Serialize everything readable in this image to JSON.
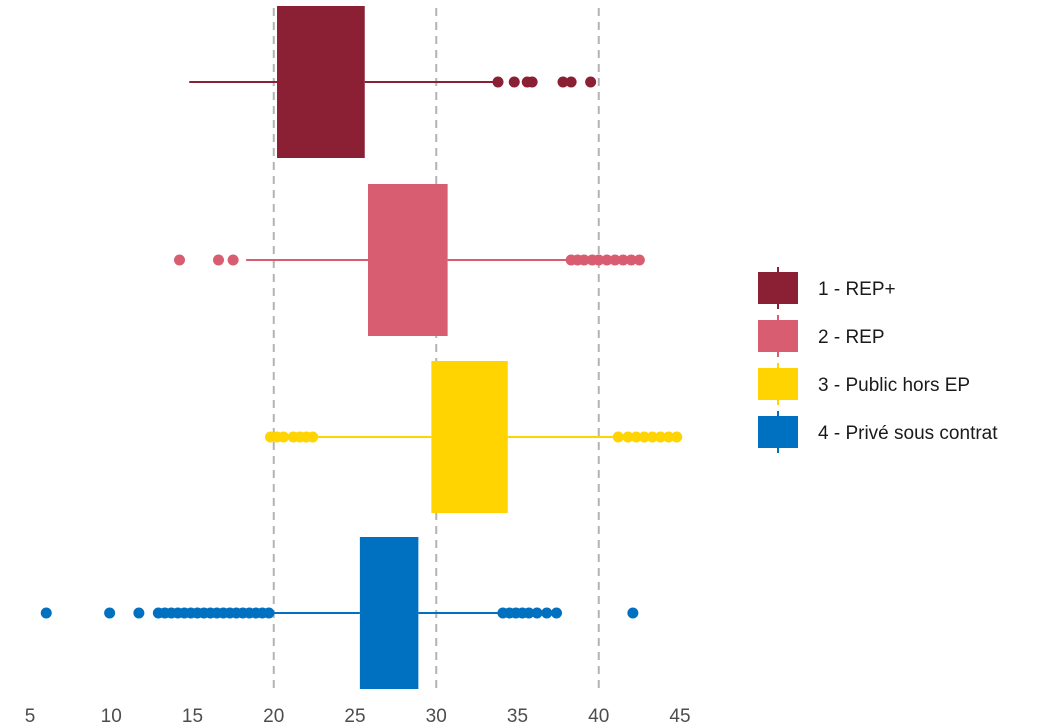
{
  "chart_data": {
    "type": "boxplot",
    "orientation": "horizontal",
    "title": "",
    "xlabel": "",
    "ylabel": "",
    "xlim": [
      5,
      45
    ],
    "x_ticks": [
      5,
      10,
      15,
      20,
      25,
      30,
      35,
      40,
      45
    ],
    "vertical_reference_lines": [
      20,
      30,
      40
    ],
    "grid": false,
    "legend_position": "right",
    "series": [
      {
        "name": "1 - REP+",
        "color": "#8b2035",
        "whisker_low": 14.8,
        "q1": 20.2,
        "median": 22.9,
        "q3": 25.6,
        "whisker_high": 33.6,
        "outliers": [
          33.8,
          34.8,
          35.6,
          35.9,
          37.8,
          38.3,
          39.5
        ]
      },
      {
        "name": "2 - REP",
        "color": "#d95d71",
        "whisker_low": 18.3,
        "q1": 25.8,
        "median": 28.2,
        "q3": 30.7,
        "whisker_high": 38.2,
        "outliers": [
          14.2,
          16.6,
          17.5,
          38.3,
          38.7,
          39.1,
          39.6,
          40.0,
          40.5,
          41.0,
          41.5,
          42.0,
          42.5
        ]
      },
      {
        "name": "3 - Public hors EP",
        "color": "#ffd400",
        "whisker_low": 22.6,
        "q1": 29.7,
        "median": 32.1,
        "q3": 34.4,
        "whisker_high": 41.0,
        "outliers": [
          19.8,
          20.2,
          20.6,
          21.2,
          21.6,
          22.0,
          22.4,
          41.2,
          41.8,
          42.3,
          42.8,
          43.3,
          43.8,
          44.3,
          44.8
        ]
      },
      {
        "name": "4 - Privé sous contrat",
        "color": "#0070c0",
        "whisker_low": 20.0,
        "q1": 25.3,
        "median": 27.1,
        "q3": 28.9,
        "whisker_high": 33.9,
        "outliers": [
          6.0,
          9.9,
          11.7,
          12.9,
          13.3,
          13.7,
          14.1,
          14.5,
          14.9,
          15.3,
          15.7,
          16.1,
          16.5,
          16.9,
          17.3,
          17.7,
          18.1,
          18.5,
          18.9,
          19.3,
          19.7,
          34.1,
          34.5,
          34.9,
          35.3,
          35.7,
          36.2,
          36.8,
          37.4,
          42.1
        ]
      }
    ]
  }
}
